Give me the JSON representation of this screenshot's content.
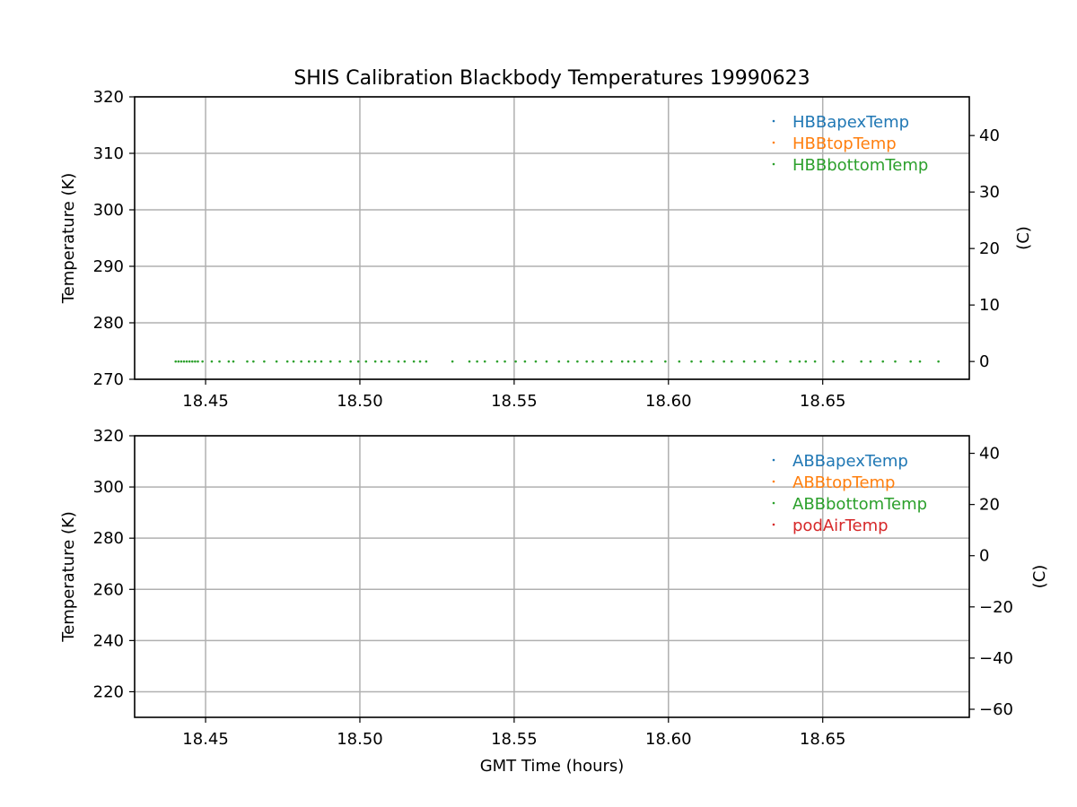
{
  "colors": {
    "blue": "#1f77b4",
    "orange": "#ff7f0e",
    "green": "#2ca02c",
    "red": "#d62728",
    "grid": "#b0b0b0"
  },
  "chart_data": [
    {
      "type": "scatter",
      "title": "SHIS Calibration Blackbody Temperatures 19990623",
      "xlabel": "",
      "ylabel": "Temperature (K)",
      "y2label": "(C)",
      "xlim": [
        18.427,
        18.6975
      ],
      "ylim": [
        270,
        320
      ],
      "y2lim": [
        -3.15,
        46.85
      ],
      "xticks": [
        "18.45",
        "18.50",
        "18.55",
        "18.60",
        "18.65"
      ],
      "yticks": [
        "270",
        "280",
        "290",
        "300",
        "310",
        "320"
      ],
      "y2ticks": [
        "0",
        "10",
        "20",
        "30",
        "40"
      ],
      "grid": true,
      "legend_position": "top-right",
      "series": [
        {
          "name": "HBBapexTemp",
          "color": "blue",
          "x": [],
          "y": []
        },
        {
          "name": "HBBtopTemp",
          "color": "orange",
          "x": [],
          "y": []
        },
        {
          "name": "HBBbottomTemp",
          "color": "green",
          "x": [
            18.4403,
            18.4412,
            18.4421,
            18.443,
            18.4439,
            18.4448,
            18.4457,
            18.4466,
            18.4475,
            18.449,
            18.452,
            18.4545,
            18.4575,
            18.459,
            18.4635,
            18.4655,
            18.469,
            18.473,
            18.4765,
            18.4785,
            18.481,
            18.4835,
            18.4855,
            18.4875,
            18.4905,
            18.4935,
            18.497,
            18.4995,
            18.502,
            18.505,
            18.507,
            18.5095,
            18.5125,
            18.5145,
            18.5175,
            18.5195,
            18.5215,
            18.53,
            18.5355,
            18.538,
            18.5405,
            18.5445,
            18.547,
            18.5505,
            18.5535,
            18.557,
            18.5605,
            18.5645,
            18.5675,
            18.5705,
            18.5735,
            18.5755,
            18.5785,
            18.5815,
            18.585,
            18.587,
            18.589,
            18.5915,
            18.5945,
            18.599,
            18.6035,
            18.6075,
            18.6105,
            18.6145,
            18.618,
            18.6205,
            18.6245,
            18.628,
            18.631,
            18.635,
            18.6395,
            18.6425,
            18.6445,
            18.6475,
            18.6535,
            18.6565,
            18.6625,
            18.6655,
            18.6695,
            18.6735,
            18.6785,
            18.6815,
            18.6875
          ],
          "y": [
            273.15,
            273.15,
            273.15,
            273.15,
            273.15,
            273.15,
            273.15,
            273.15,
            273.15,
            273.15,
            273.15,
            273.15,
            273.15,
            273.15,
            273.15,
            273.15,
            273.15,
            273.15,
            273.15,
            273.15,
            273.15,
            273.15,
            273.15,
            273.15,
            273.15,
            273.15,
            273.15,
            273.15,
            273.15,
            273.15,
            273.15,
            273.15,
            273.15,
            273.15,
            273.15,
            273.15,
            273.15,
            273.15,
            273.15,
            273.15,
            273.15,
            273.15,
            273.15,
            273.15,
            273.15,
            273.15,
            273.15,
            273.15,
            273.15,
            273.15,
            273.15,
            273.15,
            273.15,
            273.15,
            273.15,
            273.15,
            273.15,
            273.15,
            273.15,
            273.15,
            273.15,
            273.15,
            273.15,
            273.15,
            273.15,
            273.15,
            273.15,
            273.15,
            273.15,
            273.15,
            273.15,
            273.15,
            273.15,
            273.15,
            273.15,
            273.15,
            273.15,
            273.15,
            273.15,
            273.15,
            273.15,
            273.15,
            273.15
          ]
        }
      ]
    },
    {
      "type": "scatter",
      "title": "",
      "xlabel": "GMT Time (hours)",
      "ylabel": "Temperature (K)",
      "y2label": "(C)",
      "xlim": [
        18.427,
        18.6975
      ],
      "ylim": [
        210,
        320
      ],
      "y2lim": [
        -63.15,
        46.85
      ],
      "xticks": [
        "18.45",
        "18.50",
        "18.55",
        "18.60",
        "18.65"
      ],
      "yticks": [
        "220",
        "240",
        "260",
        "280",
        "300",
        "320"
      ],
      "y2ticks": [
        "−60",
        "−40",
        "−20",
        "0",
        "20",
        "40"
      ],
      "grid": true,
      "legend_position": "top-right",
      "series": [
        {
          "name": "ABBapexTemp",
          "color": "blue",
          "x": [],
          "y": []
        },
        {
          "name": "ABBtopTemp",
          "color": "orange",
          "x": [],
          "y": []
        },
        {
          "name": "ABBbottomTemp",
          "color": "green",
          "x": [],
          "y": []
        },
        {
          "name": "podAirTemp",
          "color": "red",
          "x": [],
          "y": []
        }
      ]
    }
  ]
}
